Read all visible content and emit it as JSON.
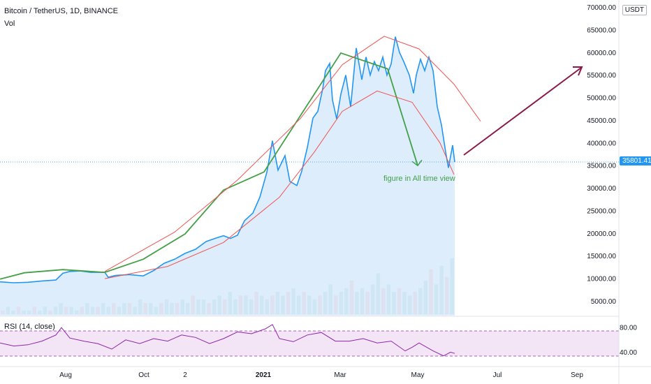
{
  "header": {
    "symbol": "Bitcoin / TetherUS, 1D, BINANCE",
    "volume_label": "Vol",
    "rsi_label": "RSI (14, close)",
    "currency": "USDT",
    "last_price": "35801.41",
    "annotation": "figure in All time view"
  },
  "colors": {
    "price_line": "#2196f3",
    "area_fill": "#d6e9fb",
    "green_line": "#43a047",
    "red_curve": "#ef5350",
    "arrow": "#8b1a4a",
    "vol_up": "#26a69a",
    "vol_down": "#ef5350",
    "rsi_line": "#8e24aa",
    "rsi_band": "#f3e5f5",
    "annotation_text": "#43a047"
  },
  "chart_data": {
    "type": "line",
    "y_axis": {
      "ticks": [
        "70000.00",
        "65000.00",
        "60000.00",
        "55000.00",
        "50000.00",
        "45000.00",
        "40000.00",
        "35000.00",
        "30000.00",
        "25000.00",
        "20000.00",
        "15000.00",
        "10000.00",
        "5000.00"
      ],
      "ylim": [
        4000,
        71000
      ]
    },
    "x_axis": {
      "ticks": [
        "Aug",
        "Oct",
        "2",
        "2021",
        "Mar",
        "May",
        "Jul",
        "Sep"
      ]
    },
    "rsi_axis": {
      "ticks": [
        "80.00",
        "40.00"
      ],
      "ylim": [
        20,
        95
      ]
    },
    "series": [
      {
        "role": "price",
        "points": [
          [
            0,
            9300
          ],
          [
            20,
            9100
          ],
          [
            40,
            9200
          ],
          [
            60,
            9500
          ],
          [
            80,
            9700
          ],
          [
            90,
            11200
          ],
          [
            100,
            11600
          ],
          [
            115,
            11700
          ],
          [
            130,
            11400
          ],
          [
            150,
            11400
          ],
          [
            155,
            10300
          ],
          [
            165,
            10700
          ],
          [
            185,
            10900
          ],
          [
            205,
            10600
          ],
          [
            220,
            11800
          ],
          [
            235,
            13400
          ],
          [
            250,
            14300
          ],
          [
            265,
            15600
          ],
          [
            280,
            16500
          ],
          [
            295,
            18200
          ],
          [
            310,
            19000
          ],
          [
            320,
            19500
          ],
          [
            330,
            18900
          ],
          [
            340,
            19600
          ],
          [
            350,
            22800
          ],
          [
            362,
            24500
          ],
          [
            372,
            28000
          ],
          [
            382,
            33500
          ],
          [
            390,
            40500
          ],
          [
            398,
            34000
          ],
          [
            408,
            37200
          ],
          [
            415,
            31500
          ],
          [
            425,
            30600
          ],
          [
            432,
            33800
          ],
          [
            440,
            39000
          ],
          [
            448,
            45500
          ],
          [
            455,
            47000
          ],
          [
            462,
            52000
          ],
          [
            466,
            56000
          ],
          [
            472,
            57600
          ],
          [
            476,
            49500
          ],
          [
            482,
            45300
          ],
          [
            488,
            50800
          ],
          [
            495,
            55000
          ],
          [
            502,
            48000
          ],
          [
            510,
            61000
          ],
          [
            518,
            54000
          ],
          [
            524,
            59000
          ],
          [
            530,
            55000
          ],
          [
            536,
            58000
          ],
          [
            542,
            56000
          ],
          [
            548,
            59000
          ],
          [
            554,
            55000
          ],
          [
            560,
            57500
          ],
          [
            566,
            63500
          ],
          [
            572,
            60000
          ],
          [
            578,
            58000
          ],
          [
            586,
            55000
          ],
          [
            592,
            51000
          ],
          [
            596,
            55000
          ],
          [
            602,
            58500
          ],
          [
            608,
            56000
          ],
          [
            614,
            59000
          ],
          [
            620,
            56000
          ],
          [
            626,
            48000
          ],
          [
            632,
            44000
          ],
          [
            638,
            38000
          ],
          [
            642,
            34500
          ],
          [
            648,
            39500
          ],
          [
            651,
            35800
          ]
        ]
      },
      {
        "role": "green-trend",
        "points": [
          [
            0,
            9900
          ],
          [
            35,
            11300
          ],
          [
            90,
            12000
          ],
          [
            150,
            11400
          ],
          [
            205,
            14300
          ],
          [
            265,
            19900
          ],
          [
            320,
            29600
          ],
          [
            378,
            33600
          ],
          [
            488,
            59900
          ],
          [
            555,
            56400
          ],
          [
            598,
            35000
          ]
        ]
      },
      {
        "role": "upper-arc",
        "points": [
          [
            150,
            11600
          ],
          [
            250,
            20300
          ],
          [
            340,
            31800
          ],
          [
            430,
            45400
          ],
          [
            490,
            57300
          ],
          [
            550,
            63600
          ],
          [
            600,
            60800
          ],
          [
            650,
            53000
          ],
          [
            688,
            44800
          ]
        ]
      },
      {
        "role": "lower-arc",
        "points": [
          [
            150,
            10000
          ],
          [
            240,
            12700
          ],
          [
            320,
            18000
          ],
          [
            400,
            28000
          ],
          [
            450,
            38000
          ],
          [
            490,
            47000
          ],
          [
            540,
            51500
          ],
          [
            590,
            49000
          ],
          [
            630,
            40000
          ],
          [
            650,
            33000
          ]
        ]
      },
      {
        "role": "rsi",
        "points": [
          [
            0,
            55
          ],
          [
            20,
            50
          ],
          [
            40,
            52
          ],
          [
            60,
            58
          ],
          [
            80,
            68
          ],
          [
            88,
            80
          ],
          [
            100,
            63
          ],
          [
            120,
            58
          ],
          [
            140,
            54
          ],
          [
            160,
            45
          ],
          [
            180,
            60
          ],
          [
            200,
            54
          ],
          [
            220,
            62
          ],
          [
            240,
            58
          ],
          [
            260,
            68
          ],
          [
            280,
            64
          ],
          [
            300,
            54
          ],
          [
            320,
            62
          ],
          [
            340,
            73
          ],
          [
            360,
            70
          ],
          [
            380,
            78
          ],
          [
            390,
            85
          ],
          [
            400,
            62
          ],
          [
            420,
            57
          ],
          [
            440,
            68
          ],
          [
            460,
            72
          ],
          [
            480,
            58
          ],
          [
            500,
            58
          ],
          [
            520,
            62
          ],
          [
            540,
            55
          ],
          [
            560,
            58
          ],
          [
            580,
            42
          ],
          [
            590,
            48
          ],
          [
            600,
            55
          ],
          [
            620,
            42
          ],
          [
            635,
            34
          ],
          [
            645,
            40
          ],
          [
            651,
            38
          ]
        ]
      },
      {
        "role": "volume",
        "values": [
          1,
          2,
          1,
          2,
          1,
          1,
          2,
          1,
          2,
          1,
          2,
          3,
          2,
          2,
          1,
          2,
          3,
          2,
          2,
          3,
          2,
          3,
          2,
          3,
          3,
          2,
          4,
          3,
          3,
          2,
          3,
          4,
          3,
          3,
          4,
          3,
          5,
          4,
          4,
          3,
          4,
          5,
          4,
          6,
          4,
          5,
          5,
          4,
          6,
          5,
          4,
          5,
          6,
          5,
          6,
          7,
          5,
          6,
          5,
          4,
          5,
          6,
          8,
          5,
          6,
          7,
          9,
          6,
          7,
          6,
          8,
          11,
          7,
          8,
          6,
          7,
          6,
          5,
          6,
          7,
          9,
          12,
          8,
          13,
          10,
          15
        ]
      }
    ]
  }
}
